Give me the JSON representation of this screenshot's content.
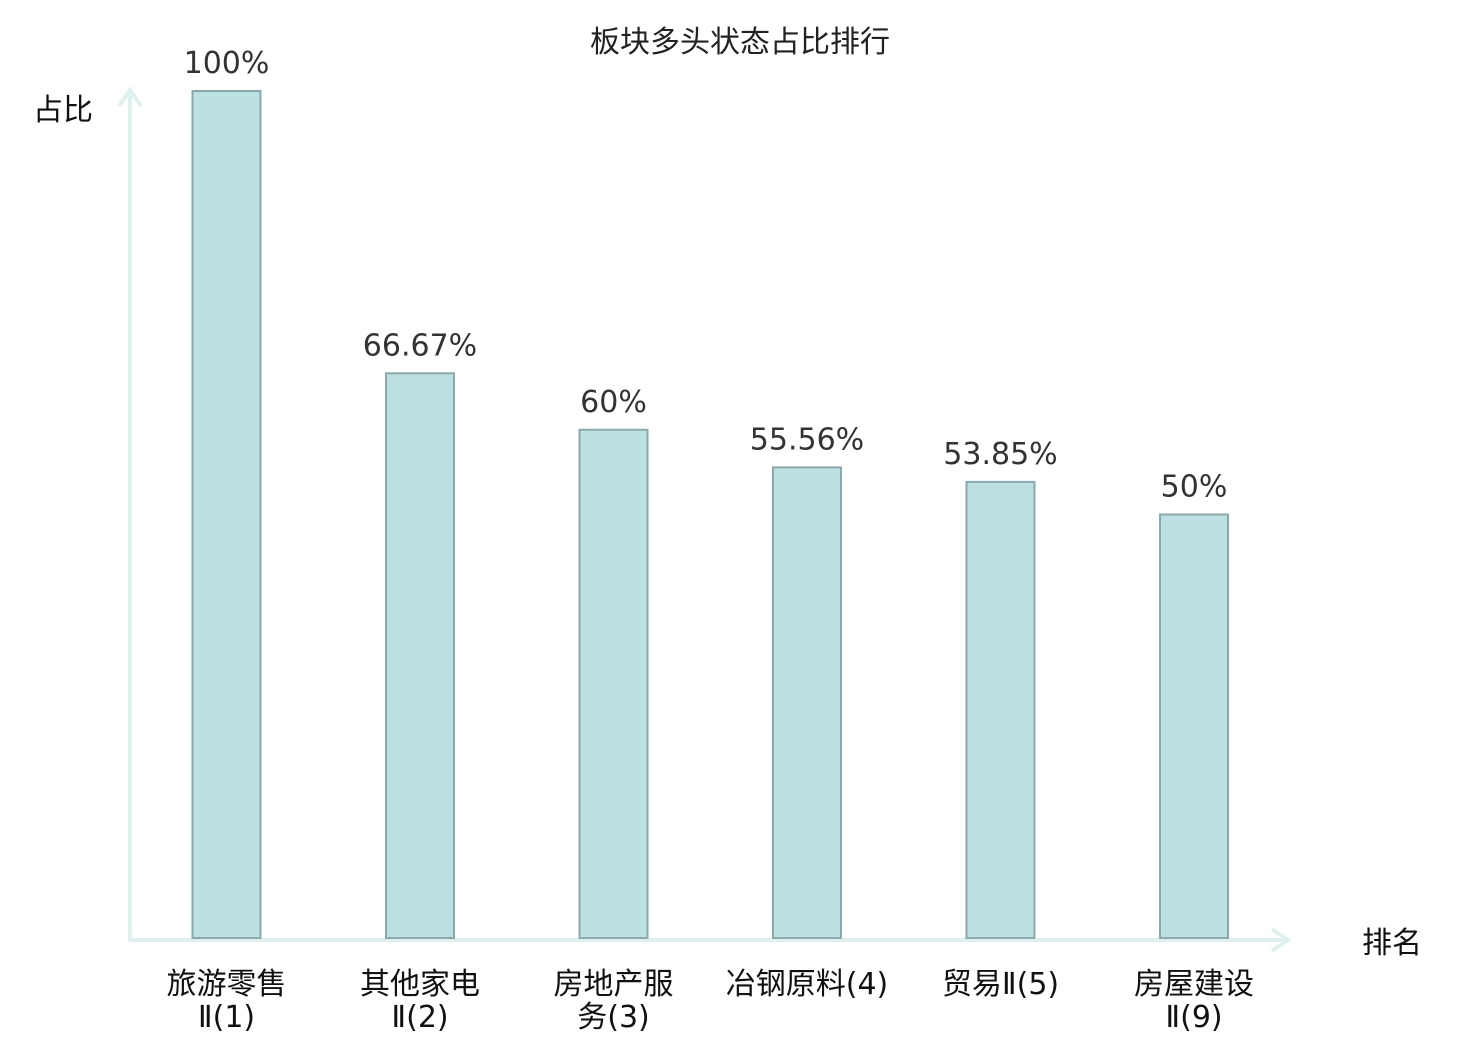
{
  "chart_data": {
    "type": "bar",
    "title": "板块多头状态占比排行",
    "xlabel": "排名",
    "ylabel": "占比",
    "ylim": [
      0,
      100
    ],
    "categories": [
      [
        "旅游零售",
        "Ⅱ(1)"
      ],
      [
        "其他家电",
        "Ⅱ(2)"
      ],
      [
        "房地产服",
        "务(3)"
      ],
      [
        "冶钢原料(4)"
      ],
      [
        "贸易Ⅱ(5)"
      ],
      [
        "房屋建设",
        "Ⅱ(9)"
      ]
    ],
    "values": [
      100,
      66.67,
      60,
      55.56,
      53.85,
      50
    ],
    "value_labels": [
      "100%",
      "66.67%",
      "60%",
      "55.56%",
      "53.85%",
      "50%"
    ],
    "highlight_index": 5,
    "grid": false,
    "colors": {
      "bar_fill": "#bde0e3",
      "bar_stroke": "#8aa9ad",
      "axis": "#dff1ef",
      "highlight_text": "#e0201b",
      "text": "#111111",
      "value_text": "#333333"
    }
  }
}
